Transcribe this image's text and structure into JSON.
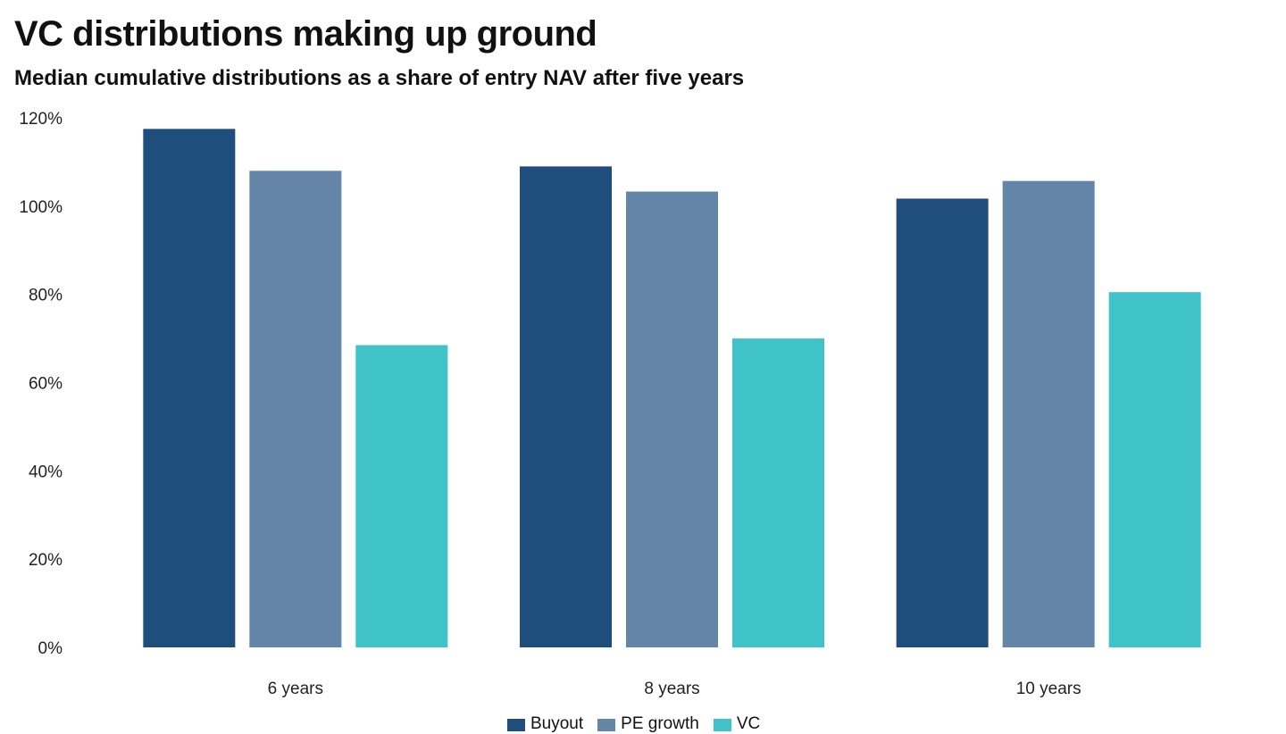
{
  "chart_data": {
    "type": "bar",
    "title": "VC distributions making up ground",
    "subtitle": "Median cumulative distributions as a share of entry NAV after five years",
    "categories": [
      "6 years",
      "8 years",
      "10 years"
    ],
    "series": [
      {
        "name": "Buyout",
        "color": "#1f4e7d",
        "values": [
          117.5,
          109,
          101.7
        ]
      },
      {
        "name": "PE growth",
        "color": "#6385a7",
        "values": [
          108,
          103.3,
          105.7
        ]
      },
      {
        "name": "VC",
        "color": "#3fc3c8",
        "values": [
          68.5,
          70,
          80.5
        ]
      }
    ],
    "ylim": [
      0,
      120
    ],
    "yticks": [
      0,
      20,
      40,
      60,
      80,
      100,
      120
    ],
    "ytick_labels": [
      "0%",
      "20%",
      "40%",
      "60%",
      "80%",
      "100%",
      "120%"
    ],
    "xlabel": "",
    "ylabel": "",
    "grid": false,
    "legend_position": "bottom-center"
  }
}
